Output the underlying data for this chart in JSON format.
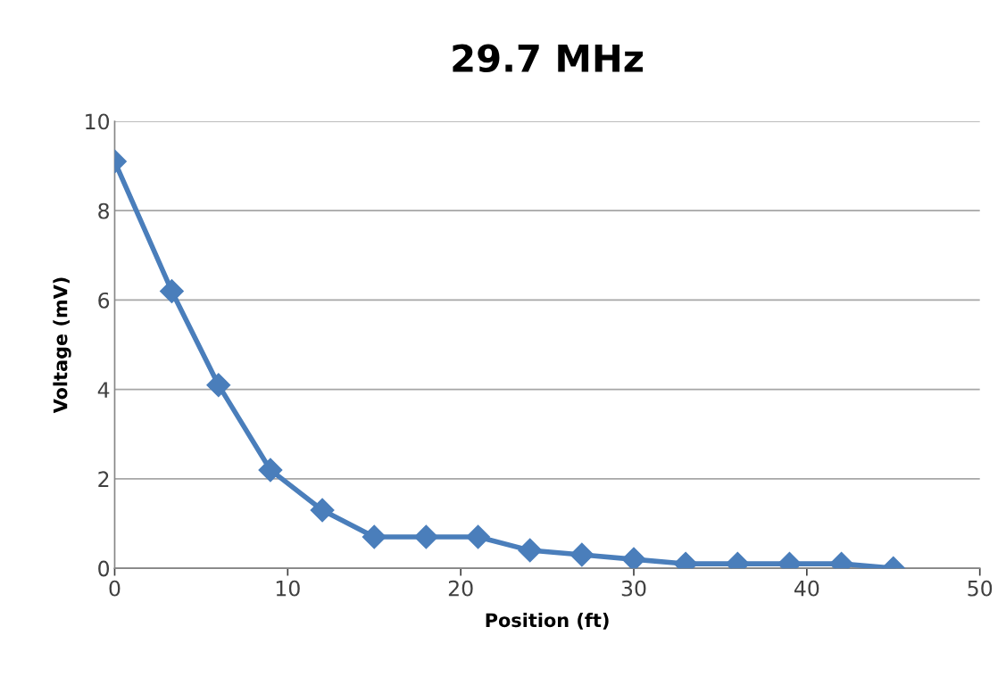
{
  "chart_data": {
    "type": "line",
    "title": "29.7 MHz",
    "xlabel": "Position (ft)",
    "ylabel": "Voltage (mV)",
    "x": [
      0,
      3.3,
      6,
      9,
      12,
      15,
      18,
      21,
      24,
      27,
      30,
      33,
      36,
      39,
      42,
      45
    ],
    "series": [
      {
        "color": "#4a7ebb",
        "values": [
          9.1,
          6.2,
          4.1,
          2.2,
          1.3,
          0.7,
          0.7,
          0.7,
          0.4,
          0.3,
          0.2,
          0.1,
          0.1,
          0.1,
          0.1,
          0.0
        ]
      }
    ],
    "xlim": [
      0,
      50
    ],
    "xticks": [
      0,
      10,
      20,
      30,
      40,
      50
    ],
    "ylim": [
      0,
      10
    ],
    "yticks": [
      0,
      2,
      4,
      6,
      8,
      10
    ],
    "grid": "y",
    "marker": "diamond",
    "line_style": "solid",
    "legend": false
  }
}
